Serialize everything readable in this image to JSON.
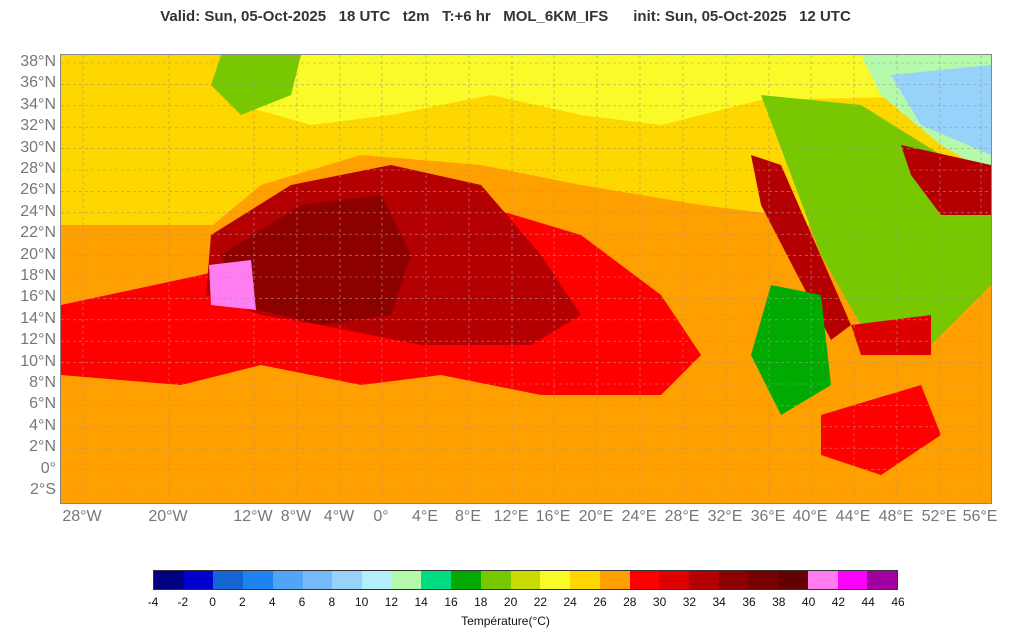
{
  "header": {
    "text": "Valid: Sun, 05-Oct-2025   18 UTC   t2m   T:+6 hr   MOL_6KM_IFS      init: Sun, 05-Oct-2025   12 UTC"
  },
  "map": {
    "lat_labels": [
      "38°N",
      "36°N",
      "34°N",
      "32°N",
      "30°N",
      "28°N",
      "26°N",
      "24°N",
      "22°N",
      "20°N",
      "18°N",
      "16°N",
      "14°N",
      "12°N",
      "10°N",
      "8°N",
      "6°N",
      "4°N",
      "2°N",
      "0°",
      "2°S"
    ],
    "lon_labels": [
      "28°W",
      "20°W",
      "12°W",
      "8°W",
      "4°W",
      "0°",
      "4°E",
      "8°E",
      "12°E",
      "16°E",
      "20°E",
      "24°E",
      "28°E",
      "32°E",
      "36°E",
      "40°E",
      "44°E",
      "48°E",
      "52°E",
      "56°E"
    ],
    "lat_range": [
      -3,
      39
    ],
    "lon_range": [
      -30,
      57
    ]
  },
  "colorbar": {
    "colors": [
      "#000080",
      "#0000cd",
      "#1464d2",
      "#1e82f0",
      "#50a5f5",
      "#78b9fa",
      "#96d2fa",
      "#b4f0fa",
      "#b4faaa",
      "#00dc82",
      "#00aa00",
      "#78c800",
      "#c8dc00",
      "#fafa28",
      "#ffd700",
      "#ffa000",
      "#ff0000",
      "#dc0000",
      "#b40000",
      "#8c0000",
      "#780000",
      "#640000",
      "#ff7df0",
      "#ff00ff",
      "#a000a0",
      "#8c64ff"
    ],
    "ticks": [
      "-4",
      "-2",
      "0",
      "2",
      "4",
      "6",
      "8",
      "10",
      "12",
      "14",
      "16",
      "18",
      "20",
      "22",
      "24",
      "26",
      "28",
      "30",
      "32",
      "34",
      "36",
      "38",
      "40",
      "42",
      "44",
      "46"
    ],
    "title": "Température(°C)"
  }
}
